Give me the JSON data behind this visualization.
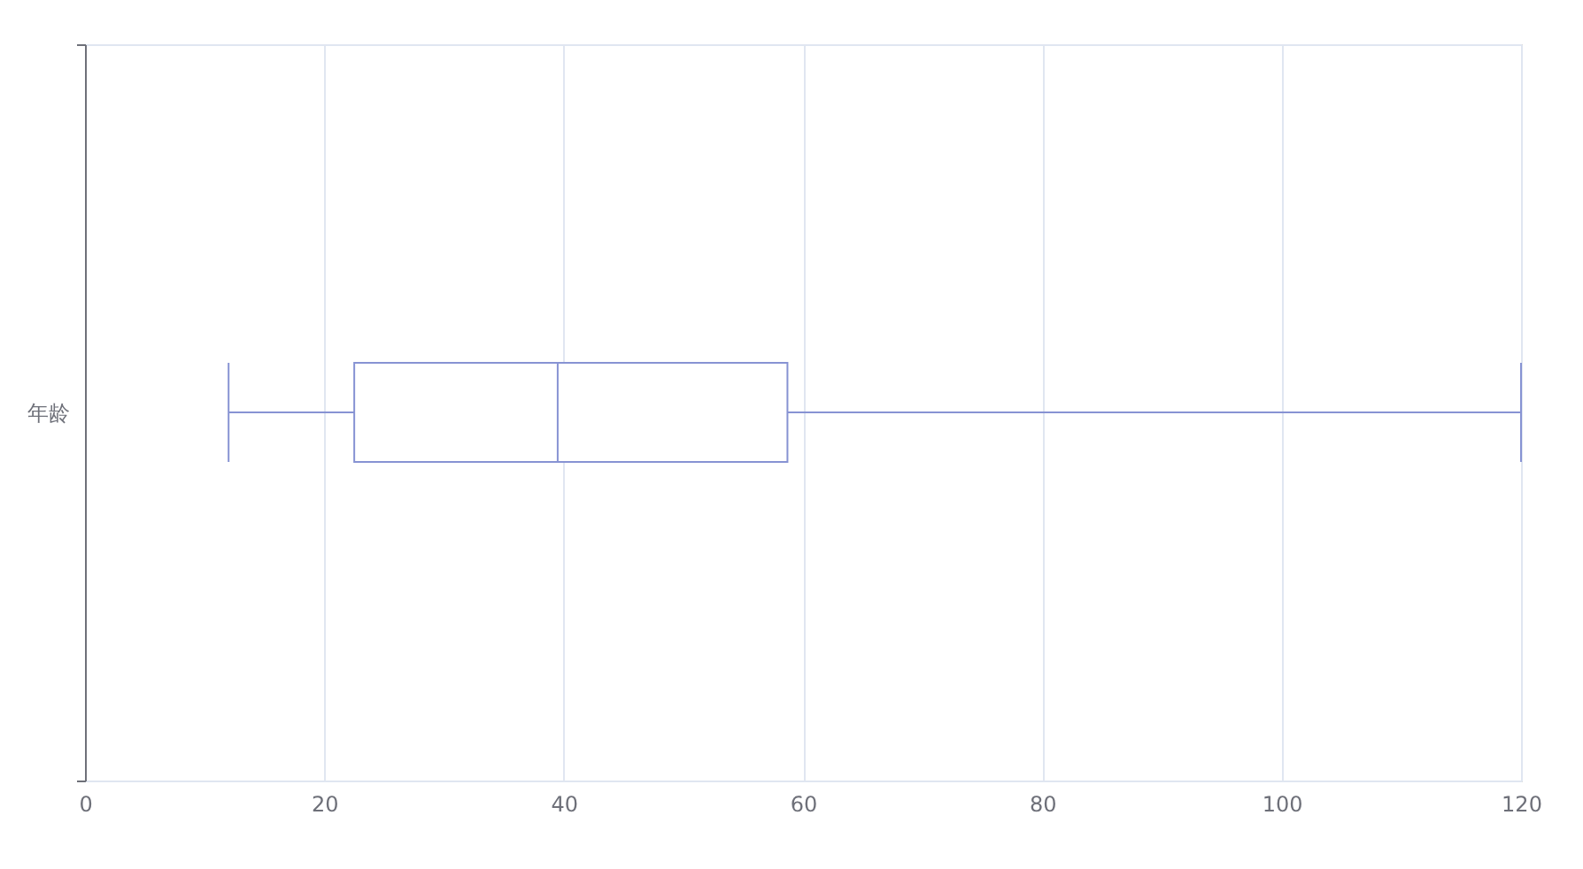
{
  "chart_data": {
    "type": "box",
    "orientation": "horizontal",
    "categories": [
      "年龄"
    ],
    "series": [
      {
        "color": "#8793d3",
        "boxes": [
          {
            "low": 12,
            "q1": 22.5,
            "median": 39.5,
            "q3": 58.7,
            "high": 120
          }
        ]
      }
    ],
    "xlim": [
      0,
      120
    ],
    "xticks": [
      0,
      20,
      40,
      60,
      80,
      100,
      120
    ],
    "grid": true
  }
}
